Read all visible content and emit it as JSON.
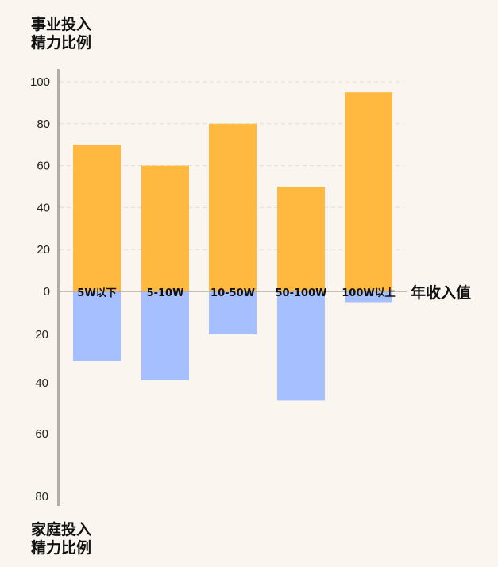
{
  "chart_data": {
    "type": "bar",
    "ylabel_top": "事业投入\n精力比例",
    "ylabel_bottom": "家庭投入\n精力比例",
    "xlabel": "年收入值",
    "categories": [
      "5W以下",
      "5-10W",
      "10-50W",
      "50-100W",
      "100W以上"
    ],
    "series": [
      {
        "values": [
          70,
          60,
          80,
          50,
          95
        ]
      },
      {
        "values": [
          31,
          39,
          20,
          47,
          5
        ]
      }
    ],
    "top_ticks": [
      0,
      20,
      40,
      60,
      80,
      100
    ],
    "bottom_ticks": [
      20,
      40,
      60,
      80
    ],
    "ylim_top": [
      0,
      100
    ],
    "ylim_bottom": [
      0,
      80
    ],
    "grid": true,
    "colors": {
      "top": "#ffb840",
      "bottom": "#a6c0ff",
      "axis": "#b0aca6",
      "grid": "#e2ddd5"
    }
  }
}
